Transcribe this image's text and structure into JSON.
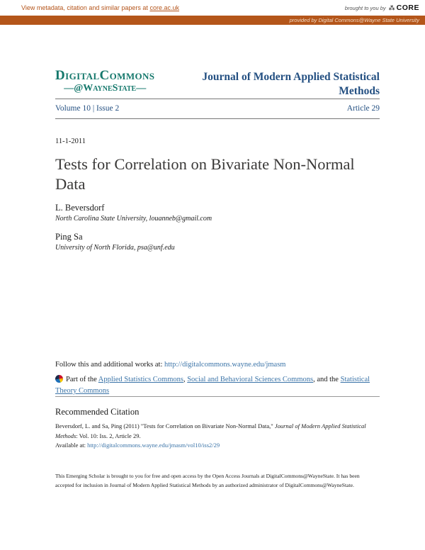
{
  "top_bar": {
    "view_text": "View metadata, citation and similar papers at ",
    "core_url": "core.ac.uk",
    "brought_text": "brought to you by",
    "core_label": "CORE",
    "provided_text": "provided by Digital Commons@Wayne State University",
    "bar_color": "#b4561a"
  },
  "header": {
    "logo_line1": "DigitalCommons",
    "logo_line2": "—@WayneState—",
    "journal_title": "Journal of Modern Applied Statistical Methods",
    "volume_issue": "Volume 10 | Issue 2",
    "article_no": "Article 29",
    "logo_color": "#15786c",
    "title_color": "#245082"
  },
  "article": {
    "date": "11-1-2011",
    "title": "Tests for Correlation on Bivariate Non-Normal Data",
    "authors": [
      {
        "name": "L. Beversdorf",
        "affiliation": "North Carolina State University, louanneb@gmail.com"
      },
      {
        "name": "Ping Sa",
        "affiliation": "University of North Florida, psa@unf.edu"
      }
    ]
  },
  "follow": {
    "intro": "Follow this and additional works at: ",
    "works_url": "http://digitalcommons.wayne.edu/jmasm",
    "part_of": "Part of the ",
    "commons_link_1": "Applied Statistics Commons",
    "sep_1": ", ",
    "commons_link_2": "Social and Behavioral Sciences Commons",
    "sep_2": ", and the ",
    "commons_link_3": "Statistical Theory Commons"
  },
  "citation": {
    "heading": "Recommended Citation",
    "text_before": "Beversdorf, L. and Sa, Ping (2011) \"Tests for Correlation on Bivariate Non-Normal Data,\" ",
    "journal_italic": "Journal of Modern Applied Statistical Methods",
    "text_after": ": Vol. 10: Iss. 2, Article 29.",
    "available_label": "Available at: ",
    "available_url": "http://digitalcommons.wayne.edu/jmasm/vol10/iss2/29"
  },
  "footer": {
    "text": "This Emerging Scholar is brought to you for free and open access by the Open Access Journals at DigitalCommons@WayneState. It has been accepted for inclusion in Journal of Modern Applied Statistical Methods by an authorized administrator of DigitalCommons@WayneState.",
    "link_color": "#3b74a8"
  }
}
